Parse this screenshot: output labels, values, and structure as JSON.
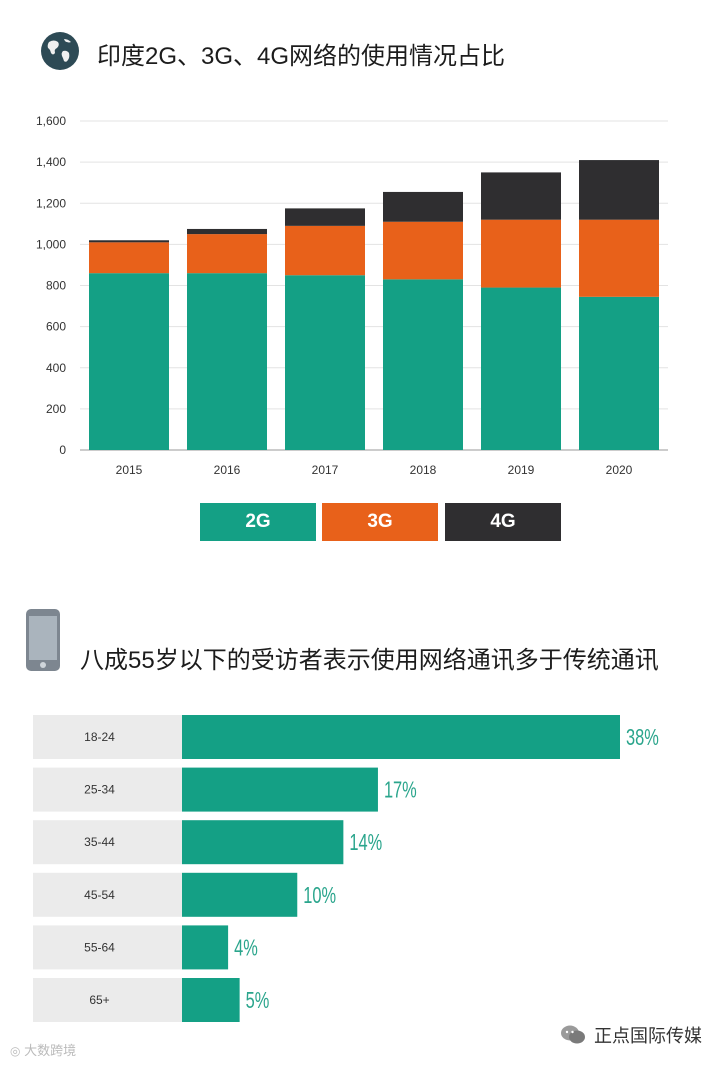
{
  "colors": {
    "teal": "#14a085",
    "orange": "#e8611a",
    "dark": "#2f2e30",
    "label_bg": "#ebebeb",
    "pct_text": "#2aa58c"
  },
  "icons": {
    "globe": "globe-icon",
    "phone": "smartphone-icon",
    "wechat": "wechat-icon",
    "watermark": "weibo-icon"
  },
  "chart_data": [
    {
      "type": "bar",
      "stacked": true,
      "title": "印度2G、3G、4G网络的使用情况占比",
      "categories": [
        "2015",
        "2016",
        "2017",
        "2018",
        "2019",
        "2020"
      ],
      "series": [
        {
          "name": "2G",
          "values": [
            860,
            860,
            850,
            830,
            790,
            745
          ]
        },
        {
          "name": "3G",
          "values": [
            150,
            190,
            240,
            280,
            330,
            375
          ]
        },
        {
          "name": "4G",
          "values": [
            10,
            25,
            85,
            145,
            230,
            290
          ]
        }
      ],
      "ylim": [
        0,
        1600
      ],
      "yticks": [
        "0",
        "200",
        "400",
        "600",
        "800",
        "1,000",
        "1,200",
        "1,400",
        "1,600"
      ],
      "grid": true,
      "legend": "bottom"
    },
    {
      "type": "bar",
      "orientation": "horizontal",
      "title": "八成55岁以下的受访者表示使用网络通讯多于传统通讯",
      "categories": [
        "18-24",
        "25-34",
        "35-44",
        "45-54",
        "55-64",
        "65+"
      ],
      "values": [
        38,
        17,
        14,
        10,
        4,
        5
      ],
      "value_labels": [
        "38%",
        "17%",
        "14%",
        "10%",
        "4%",
        "5%"
      ]
    }
  ],
  "footer": {
    "left": "大数跨境",
    "right": "正点国际传媒"
  }
}
